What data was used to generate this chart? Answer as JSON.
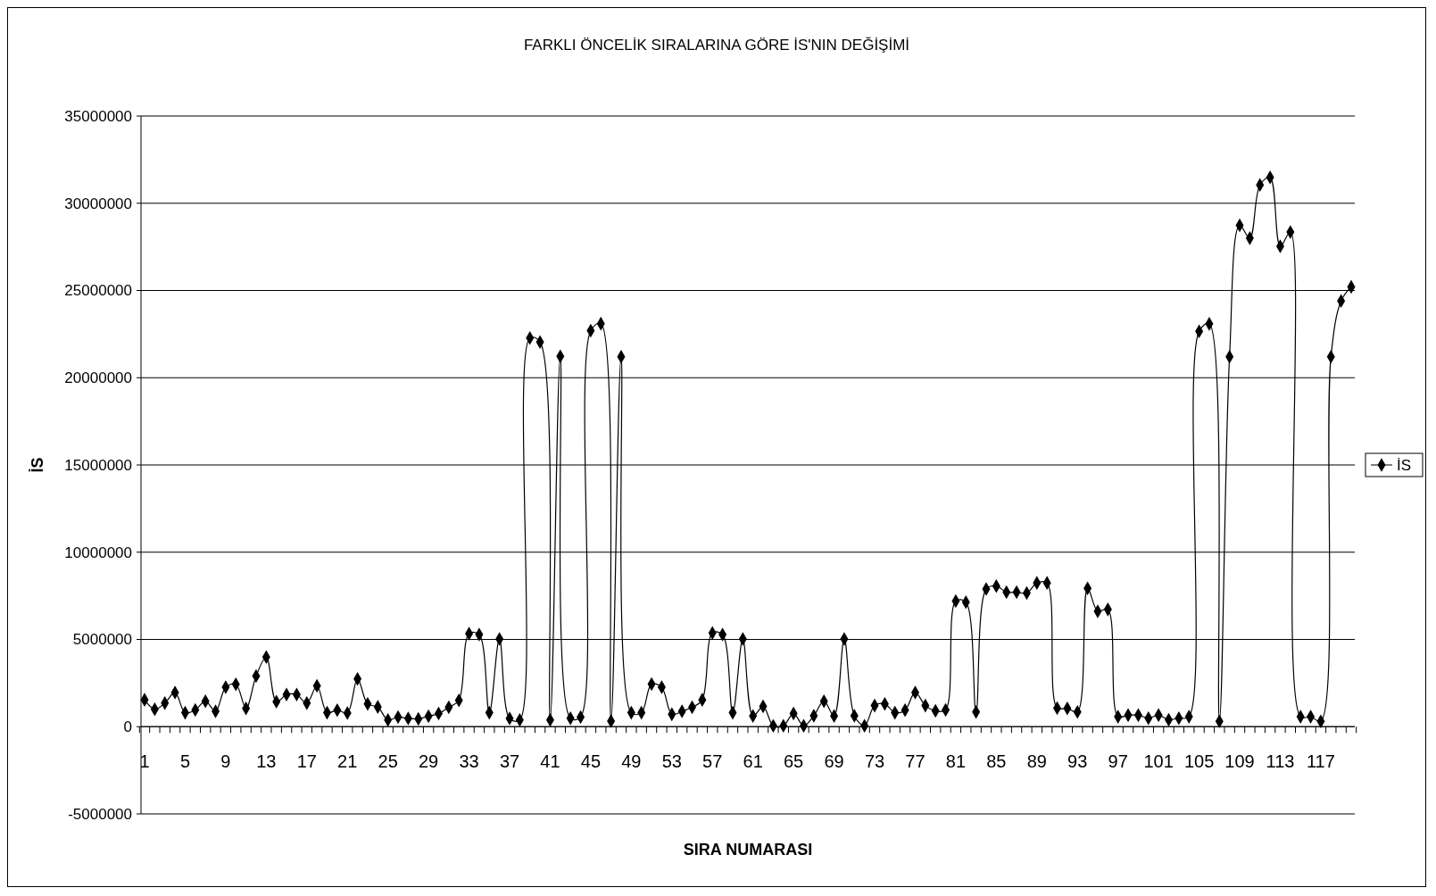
{
  "chart_data": {
    "type": "line",
    "title": "FARKLI ÖNCELİK SIRALARINA GÖRE İS'NIN DEĞİŞİMİ",
    "xlabel": "SIRA NUMARASI",
    "ylabel": "İS",
    "categories": [
      "1",
      null,
      null,
      null,
      "5",
      null,
      null,
      null,
      "9",
      null,
      null,
      null,
      "13",
      null,
      null,
      null,
      "17",
      null,
      null,
      null,
      "21",
      null,
      null,
      null,
      "25",
      null,
      null,
      null,
      "29",
      null,
      null,
      null,
      "33",
      null,
      null,
      null,
      "37",
      null,
      null,
      null,
      "41",
      null,
      null,
      null,
      "45",
      null,
      null,
      null,
      "49",
      null,
      null,
      null,
      "53",
      null,
      null,
      null,
      "57",
      null,
      null,
      null,
      "61",
      null,
      null,
      null,
      "65",
      null,
      null,
      null,
      "69",
      null,
      null,
      null,
      "73",
      null,
      null,
      null,
      "77",
      null,
      null,
      null,
      "81",
      null,
      null,
      null,
      "85",
      null,
      null,
      null,
      "89",
      null,
      null,
      null,
      "93",
      null,
      null,
      null,
      "97",
      null,
      null,
      null,
      "101",
      null,
      null,
      null,
      "105",
      null,
      null,
      null,
      "109",
      null,
      null,
      null,
      "113",
      null,
      null,
      null,
      "117",
      null,
      null,
      null
    ],
    "series": [
      {
        "name": "İS",
        "color": "#000000",
        "values": [
          1540000,
          1000000,
          1350000,
          1960000,
          800000,
          960000,
          1460000,
          880000,
          2260000,
          2430000,
          1050000,
          2900000,
          3990000,
          1430000,
          1840000,
          1840000,
          1350000,
          2340000,
          800000,
          950000,
          780000,
          2740000,
          1300000,
          1130000,
          380000,
          550000,
          470000,
          450000,
          600000,
          750000,
          1110000,
          1510000,
          5330000,
          5280000,
          800000,
          5030000,
          470000,
          380000,
          22280000,
          22050000,
          380000,
          21230000,
          480000,
          550000,
          22700000,
          23100000,
          320000,
          21200000,
          800000,
          800000,
          2440000,
          2260000,
          710000,
          880000,
          1110000,
          1540000,
          5370000,
          5280000,
          800000,
          5030000,
          610000,
          1160000,
          50000,
          50000,
          750000,
          50000,
          630000,
          1460000,
          610000,
          5030000,
          630000,
          50000,
          1210000,
          1300000,
          800000,
          950000,
          1960000,
          1210000,
          910000,
          960000,
          7200000,
          7140000,
          840000,
          7890000,
          8060000,
          7710000,
          7710000,
          7660000,
          8240000,
          8240000,
          1060000,
          1050000,
          840000,
          7930000,
          6610000,
          6720000,
          570000,
          660000,
          660000,
          490000,
          660000,
          400000,
          490000,
          570000,
          22660000,
          23090000,
          310000,
          21200000,
          28730000,
          28000000,
          31050000,
          31480000,
          27530000,
          28350000,
          570000,
          570000,
          310000,
          21200000,
          24400000,
          25210000
        ]
      }
    ],
    "ylim": [
      -5000000,
      35000000
    ],
    "yticks": [
      -5000000,
      0,
      5000000,
      10000000,
      15000000,
      20000000,
      25000000,
      30000000,
      35000000
    ],
    "grid": "y",
    "legend": "right",
    "marker": "diamond",
    "line_style": "solid"
  }
}
